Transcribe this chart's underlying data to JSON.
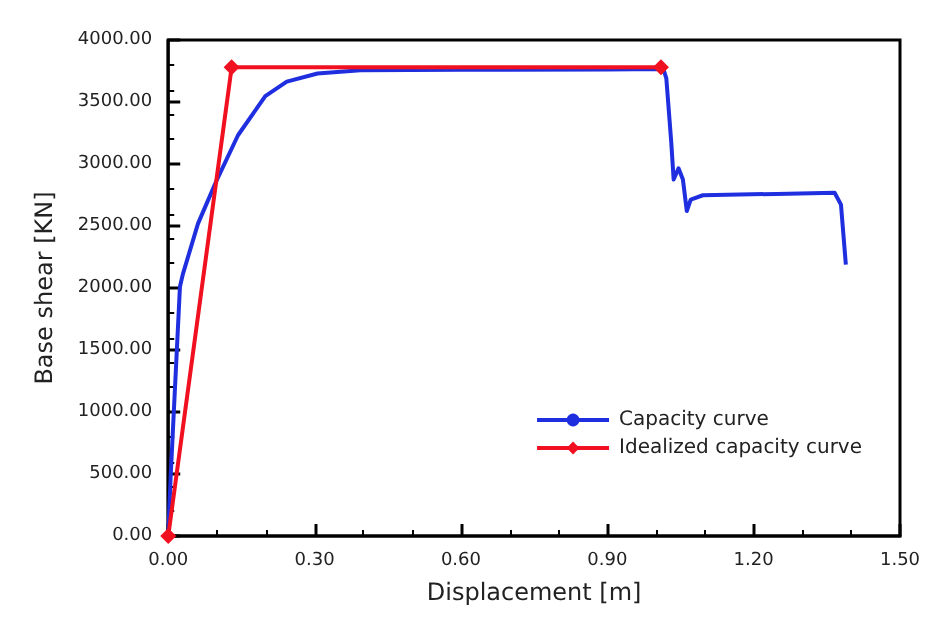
{
  "chart_data": {
    "type": "line",
    "xlabel": "Displacement [m]",
    "ylabel": "Base shear [KN]",
    "xlim": [
      0,
      1.5
    ],
    "xticks": [
      {
        "value": 0,
        "label": "0.00"
      },
      {
        "value": 0.3,
        "label": "0.30"
      },
      {
        "value": 0.6,
        "label": "0.60"
      },
      {
        "value": 0.9,
        "label": "0.90"
      },
      {
        "value": 1.2,
        "label": "1.20"
      },
      {
        "value": 1.5,
        "label": "1.50"
      }
    ],
    "ylim": [
      0,
      4000
    ],
    "yticks": [
      {
        "value": 0,
        "label": "0.00"
      },
      {
        "value": 500,
        "label": "500.00"
      },
      {
        "value": 1000,
        "label": "1000.00"
      },
      {
        "value": 1500,
        "label": "1500.00"
      },
      {
        "value": 2000,
        "label": "2000.00"
      },
      {
        "value": 2500,
        "label": "2500.00"
      },
      {
        "value": 3000,
        "label": "3000.00"
      },
      {
        "value": 3500,
        "label": "3500.00"
      },
      {
        "value": 4000,
        "label": "4000.00"
      }
    ],
    "grid": false,
    "legend": "bottom right",
    "line_style": "solid",
    "series": [
      {
        "name": "Capacity curve",
        "color": "#1f2fe0",
        "marker": "none",
        "x": [
          0,
          0.005,
          0.024,
          0.03,
          0.061,
          0.099,
          0.143,
          0.199,
          0.243,
          0.306,
          0.394,
          0.6,
          0.9,
          1.015,
          1.021,
          1.031,
          1.036,
          1.046,
          1.055,
          1.063,
          1.071,
          1.096,
          1.247,
          1.366,
          1.379,
          1.389
        ],
        "values": [
          0,
          484,
          2010,
          2112,
          2519,
          2866,
          3232,
          3547,
          3664,
          3730,
          3756,
          3760,
          3762,
          3766,
          3690,
          3180,
          2875,
          2966,
          2875,
          2621,
          2713,
          2748,
          2759,
          2768,
          2672,
          2188
        ]
      },
      {
        "name": "Idealized capacity curve",
        "color": "#f01020",
        "marker": "diamond",
        "x": [
          0,
          0.13,
          1.01
        ],
        "values": [
          0,
          3780,
          3780
        ]
      }
    ]
  }
}
